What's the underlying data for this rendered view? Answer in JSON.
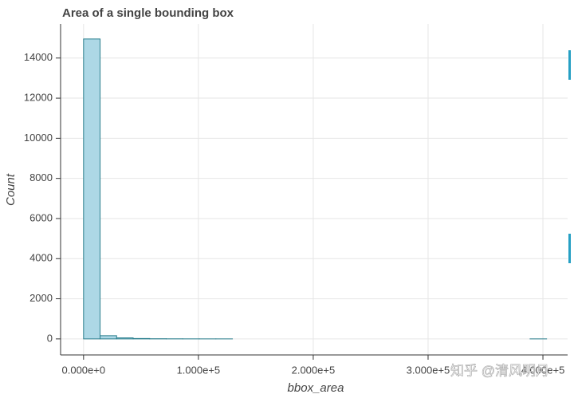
{
  "chart_data": {
    "type": "histogram",
    "title": "Area of a single bounding box",
    "x_label": "bbox_area",
    "y_label": "Count",
    "bins": [
      0,
      14400,
      28800,
      43200,
      57600,
      72000,
      86400,
      100800,
      115200,
      129600,
      144000,
      158400,
      172800,
      187200,
      201600,
      216000,
      230400,
      244800,
      259200,
      273600,
      288000,
      302400,
      316800,
      331200,
      345600,
      360000,
      374400,
      388800,
      403200
    ],
    "counts": [
      14950,
      160,
      50,
      20,
      8,
      4,
      2,
      1,
      1,
      0,
      0,
      0,
      0,
      0,
      0,
      0,
      0,
      0,
      0,
      0,
      0,
      0,
      0,
      0,
      0,
      0,
      0,
      1
    ],
    "color": "#add8e6",
    "edge_color": "#2b7f8e",
    "xlim": [
      -20000,
      421500
    ],
    "ylim": [
      -800,
      15700
    ],
    "xticks": [
      {
        "value": 0,
        "label": "0.000e+0"
      },
      {
        "value": 100000,
        "label": "1.000e+5"
      },
      {
        "value": 200000,
        "label": "2.000e+5"
      },
      {
        "value": 300000,
        "label": "3.000e+5"
      },
      {
        "value": 400000,
        "label": "4.000e+5"
      }
    ],
    "yticks": [
      0,
      2000,
      4000,
      6000,
      8000,
      10000,
      12000,
      14000
    ],
    "grid": true
  },
  "watermark": "知乎 @清风明月"
}
